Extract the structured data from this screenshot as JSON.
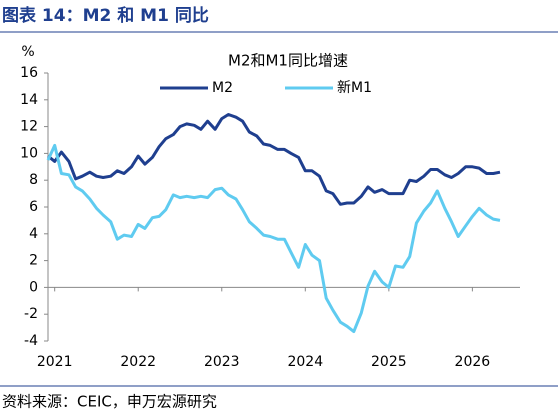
{
  "header": "图表 14：M2 和 M1 同比",
  "source": "资料来源：CEIC，申万宏源研究",
  "chart_data": {
    "type": "line",
    "title": "M2和M1同比增速",
    "y_label": "%",
    "x": [
      2020.92,
      2021.0,
      2021.08,
      2021.17,
      2021.25,
      2021.33,
      2021.42,
      2021.5,
      2021.58,
      2021.67,
      2021.75,
      2021.83,
      2021.92,
      2022.0,
      2022.08,
      2022.17,
      2022.25,
      2022.33,
      2022.42,
      2022.5,
      2022.58,
      2022.67,
      2022.75,
      2022.83,
      2022.92,
      2023.0,
      2023.08,
      2023.17,
      2023.25,
      2023.33,
      2023.42,
      2023.5,
      2023.58,
      2023.67,
      2023.75,
      2023.83,
      2023.92,
      2024.0,
      2024.08,
      2024.17,
      2024.25,
      2024.33,
      2024.42,
      2024.5,
      2024.58,
      2024.67,
      2024.75,
      2024.83,
      2024.92,
      2025.0,
      2025.08,
      2025.17,
      2025.25,
      2025.33,
      2025.42,
      2025.5,
      2025.58,
      2025.67,
      2025.75,
      2025.83,
      2025.92,
      2026.0,
      2026.08,
      2026.17,
      2026.25,
      2026.33
    ],
    "series": [
      {
        "name": "M2",
        "color": "#1f3f8f",
        "values": [
          9.8,
          9.4,
          10.1,
          9.4,
          8.1,
          8.3,
          8.6,
          8.3,
          8.2,
          8.3,
          8.7,
          8.5,
          9.0,
          9.8,
          9.2,
          9.7,
          10.5,
          11.1,
          11.4,
          12.0,
          12.2,
          12.1,
          11.8,
          12.4,
          11.8,
          12.6,
          12.9,
          12.7,
          12.4,
          11.6,
          11.3,
          10.7,
          10.6,
          10.3,
          10.3,
          10.0,
          9.7,
          8.7,
          8.7,
          8.3,
          7.2,
          7.0,
          6.2,
          6.3,
          6.3,
          6.8,
          7.5,
          7.1,
          7.3,
          7.0,
          7.0,
          7.0,
          8.0,
          7.9,
          8.3,
          8.8,
          8.8,
          8.4,
          8.2,
          8.5,
          9.0,
          9.0,
          8.9,
          8.5,
          8.5,
          8.6
        ]
      },
      {
        "name": "新M1",
        "color": "#5fcbf0",
        "values": [
          9.5,
          10.6,
          8.5,
          8.4,
          7.5,
          7.2,
          6.6,
          5.9,
          5.4,
          4.9,
          3.6,
          3.9,
          3.8,
          4.7,
          4.4,
          5.2,
          5.3,
          5.8,
          6.9,
          6.7,
          6.8,
          6.7,
          6.8,
          6.7,
          7.3,
          7.4,
          6.9,
          6.6,
          5.8,
          4.9,
          4.4,
          3.9,
          3.8,
          3.6,
          3.6,
          2.6,
          1.5,
          3.2,
          2.4,
          2.0,
          -0.8,
          -1.7,
          -2.6,
          -2.9,
          -3.3,
          -1.9,
          0.1,
          1.2,
          0.4,
          0.0,
          1.6,
          1.5,
          2.3,
          4.8,
          5.7,
          6.3,
          7.2,
          5.9,
          4.9,
          3.8,
          4.6,
          5.3,
          5.9,
          5.4,
          5.1,
          5.0
        ]
      }
    ],
    "xlim": [
      2020.92,
      2026.57
    ],
    "xticks": [
      2021,
      2022,
      2023,
      2024,
      2025,
      2026
    ],
    "ylim": [
      -4,
      16
    ],
    "yticks": [
      -4,
      -2,
      0,
      2,
      4,
      6,
      8,
      10,
      12,
      14,
      16
    ]
  }
}
